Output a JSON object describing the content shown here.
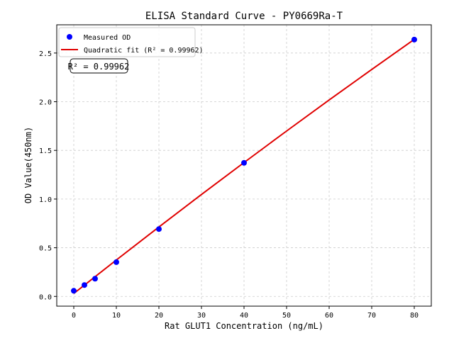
{
  "chart_data": {
    "type": "scatter",
    "title": "ELISA Standard Curve - PY0669Ra-T",
    "xlabel": "Rat GLUT1 Concentration (ng/mL)",
    "ylabel": "OD Value(450nm)",
    "xlim": [
      -4,
      84
    ],
    "ylim": [
      -0.1,
      2.79
    ],
    "xticks": [
      0,
      10,
      20,
      30,
      40,
      50,
      60,
      70,
      80
    ],
    "yticks": [
      0.0,
      0.5,
      1.0,
      1.5,
      2.0,
      2.5
    ],
    "ytick_labels": [
      "0.0",
      "0.5",
      "1.0",
      "1.5",
      "2.0",
      "2.5"
    ],
    "grid": true,
    "legend_position": "top-left",
    "series": [
      {
        "name": "Measured OD",
        "kind": "scatter",
        "color": "#0000ff",
        "x": [
          0,
          2.5,
          5,
          10,
          20,
          40,
          80
        ],
        "y": [
          0.058,
          0.117,
          0.182,
          0.352,
          0.692,
          1.372,
          2.638
        ]
      },
      {
        "name": "Quadratic fit (R² = 0.99962)",
        "kind": "line",
        "color": "#e00000",
        "x": [
          0,
          10,
          20,
          30,
          40,
          50,
          60,
          70,
          80
        ],
        "y": [
          0.03,
          0.374,
          0.713,
          1.047,
          1.375,
          1.699,
          2.018,
          2.331,
          2.64
        ]
      }
    ],
    "annotation": "R² = 0.99962"
  }
}
